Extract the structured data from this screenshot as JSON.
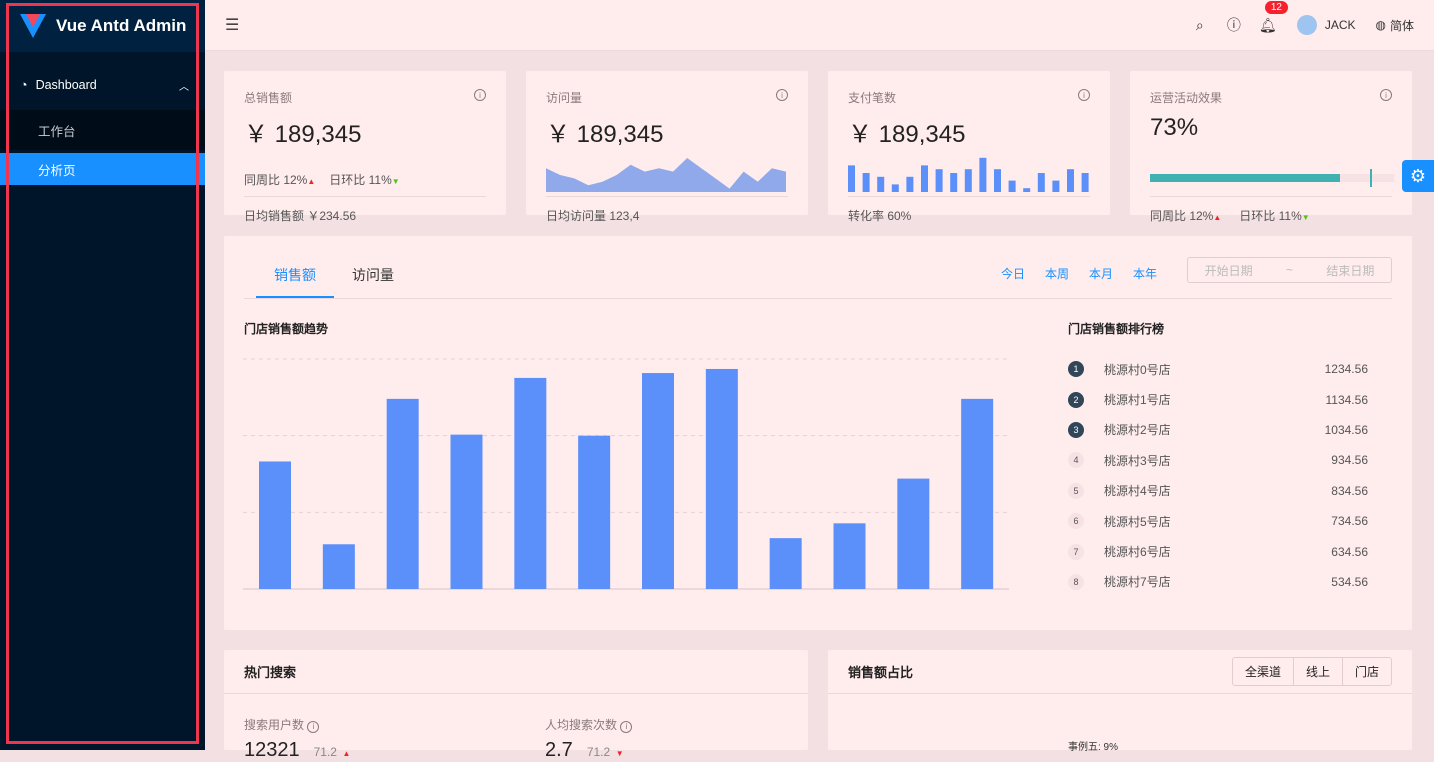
{
  "app": {
    "title": "Vue Antd Admin"
  },
  "sidebar": {
    "group": "Dashboard",
    "items": [
      {
        "label": "工作台"
      },
      {
        "label": "分析页",
        "active": true
      }
    ]
  },
  "header": {
    "badge": "12",
    "user": "JACK",
    "lang": "简体"
  },
  "metrics": [
    {
      "title": "总销售额",
      "value": "￥ 189,345",
      "wow_label": "同周比 12%",
      "dod_label": "日环比 11%",
      "footer": "日均销售额 ￥234.56"
    },
    {
      "title": "访问量",
      "value": "￥ 189,345",
      "footer": "日均访问量 123,4",
      "area": [
        7,
        5,
        4,
        2,
        3,
        5,
        8,
        6,
        7,
        6,
        10,
        7,
        4,
        1,
        6,
        3,
        7,
        6
      ]
    },
    {
      "title": "支付笔数",
      "value": "￥ 189,345",
      "footer": "转化率 60%",
      "bars": [
        7,
        5,
        4,
        2,
        4,
        7,
        6,
        5,
        6,
        9,
        6,
        3,
        1,
        5,
        3,
        6,
        5
      ]
    },
    {
      "title": "运营活动效果",
      "value": "73%",
      "progress": 73,
      "target": 90,
      "wow_label": "同周比 12%",
      "dod_label": "日环比 11%"
    }
  ],
  "sales": {
    "tabs": [
      "销售额",
      "访问量"
    ],
    "ranges": [
      "今日",
      "本周",
      "本月",
      "本年"
    ],
    "date_start": "开始日期",
    "date_sep": "~",
    "date_end": "结束日期",
    "chart_title": "门店销售额趋势",
    "rank_title": "门店销售额排行榜",
    "rank": [
      {
        "n": "1",
        "name": "桃源村0号店",
        "value": "1234.56"
      },
      {
        "n": "2",
        "name": "桃源村1号店",
        "value": "1134.56"
      },
      {
        "n": "3",
        "name": "桃源村2号店",
        "value": "1034.56"
      },
      {
        "n": "4",
        "name": "桃源村3号店",
        "value": "934.56"
      },
      {
        "n": "5",
        "name": "桃源村4号店",
        "value": "834.56"
      },
      {
        "n": "6",
        "name": "桃源村5号店",
        "value": "734.56"
      },
      {
        "n": "7",
        "name": "桃源村6号店",
        "value": "634.56"
      },
      {
        "n": "8",
        "name": "桃源村7号店",
        "value": "534.56"
      }
    ]
  },
  "chart_data": {
    "type": "bar",
    "values": [
      499,
      175,
      744,
      604,
      826,
      600,
      845,
      861,
      199,
      257,
      432,
      744
    ],
    "ylim": [
      0,
      1200
    ],
    "grid": true,
    "color": "#5b8ff9"
  },
  "hot_search": {
    "title": "热门搜索",
    "stats": [
      {
        "label": "搜索用户数",
        "value": "12321",
        "change": "71.2",
        "dir": "up"
      },
      {
        "label": "人均搜索次数",
        "value": "2.7",
        "change": "71.2",
        "dir": "down"
      }
    ]
  },
  "share": {
    "title": "销售额占比",
    "segments": [
      "全渠道",
      "线上",
      "门店"
    ],
    "pie_label": "事例五: 9%"
  },
  "colors": {
    "primary": "#1890ff",
    "sidebar": "#001529",
    "progress": "#3fb1b0"
  }
}
